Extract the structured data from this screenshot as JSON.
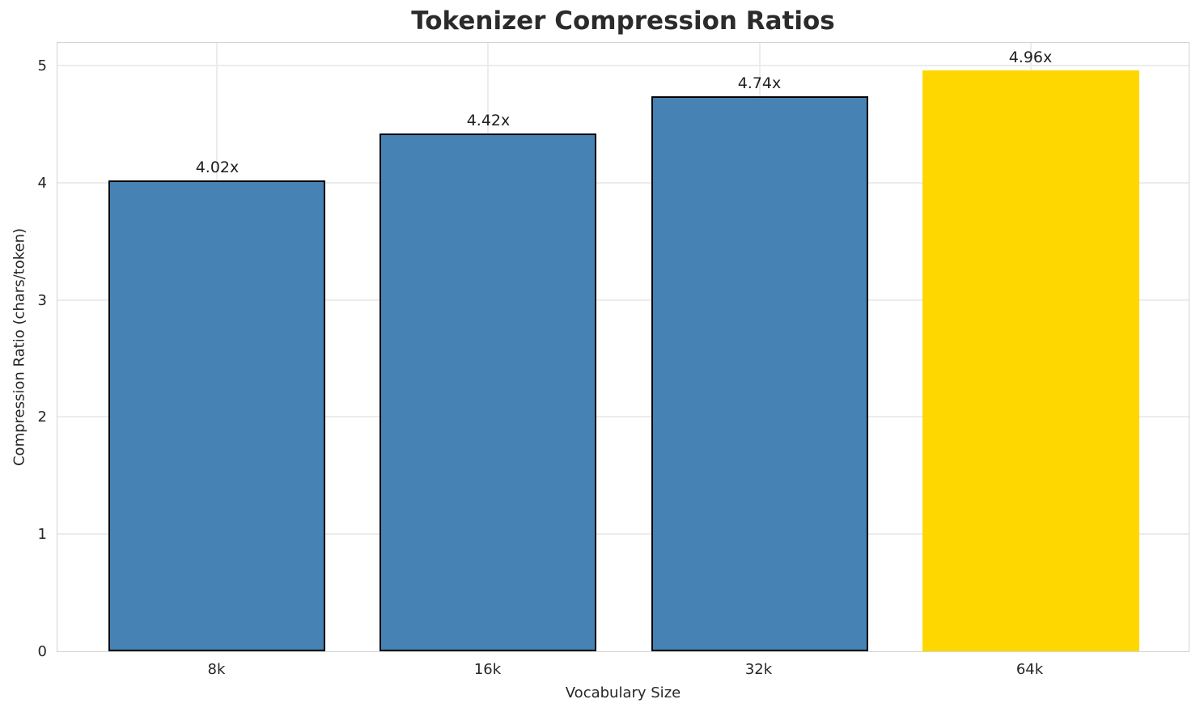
{
  "chart_data": {
    "type": "bar",
    "title": "Tokenizer Compression Ratios",
    "xlabel": "Vocabulary Size",
    "ylabel": "Compression Ratio (chars/token)",
    "categories": [
      "8k",
      "16k",
      "32k",
      "64k"
    ],
    "values": [
      4.02,
      4.42,
      4.74,
      4.96
    ],
    "bar_labels": [
      "4.02x",
      "4.42x",
      "4.74x",
      "4.96x"
    ],
    "yticks": [
      0,
      1,
      2,
      3,
      4,
      5
    ],
    "ylim": [
      0,
      5.208
    ],
    "grid": true,
    "legend_position": "none",
    "highlight_index": 3,
    "colors": {
      "bar": "#4682B4",
      "highlight_bar": "#FFD700",
      "bar_edge": "#000000",
      "grid": "#ececec",
      "spine": "#d4d4d4",
      "title_text": "#2b2b2b",
      "tick_text": "#262626",
      "value_label_text": "#1f1f1f"
    }
  }
}
